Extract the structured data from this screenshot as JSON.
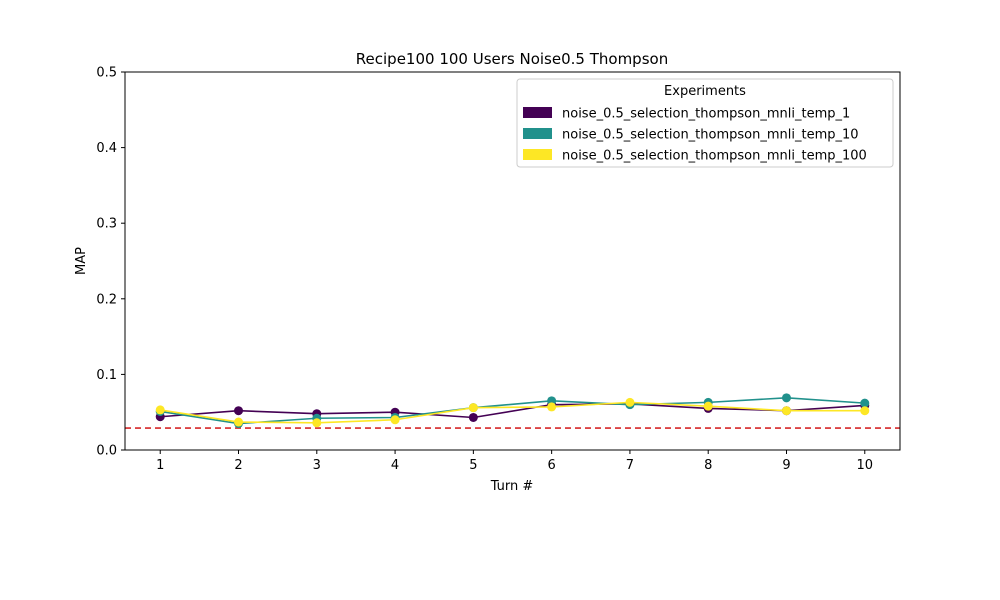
{
  "chart_data": {
    "type": "line",
    "title": "Recipe100 100 Users Noise0.5 Thompson",
    "xlabel": "Turn #",
    "ylabel": "MAP",
    "x": [
      1,
      2,
      3,
      4,
      5,
      6,
      7,
      8,
      9,
      10
    ],
    "xlim": [
      0.55,
      10.45
    ],
    "ylim": [
      0.0,
      0.5
    ],
    "yticks": [
      "0.0",
      "0.1",
      "0.2",
      "0.3",
      "0.4",
      "0.5"
    ],
    "xticks": [
      "1",
      "2",
      "3",
      "4",
      "5",
      "6",
      "7",
      "8",
      "9",
      "10"
    ],
    "grid": false,
    "legend": {
      "title": "Experiments",
      "placement": "top-right"
    },
    "series": [
      {
        "name": "noise_0.5_selection_thompson_mnli_temp_1",
        "color": "#440154",
        "values": [
          0.044,
          0.052,
          0.048,
          0.05,
          0.043,
          0.06,
          0.061,
          0.055,
          0.052,
          0.059
        ]
      },
      {
        "name": "noise_0.5_selection_thompson_mnli_temp_10",
        "color": "#21918c",
        "values": [
          0.051,
          0.035,
          0.042,
          0.043,
          0.056,
          0.065,
          0.06,
          0.063,
          0.069,
          0.062
        ]
      },
      {
        "name": "noise_0.5_selection_thompson_mnli_temp_100",
        "color": "#fde725",
        "values": [
          0.053,
          0.037,
          0.036,
          0.04,
          0.056,
          0.057,
          0.063,
          0.058,
          0.052,
          0.052
        ]
      }
    ],
    "reference_line": {
      "value": 0.029,
      "color": "#d62728",
      "style": "dashed"
    }
  }
}
